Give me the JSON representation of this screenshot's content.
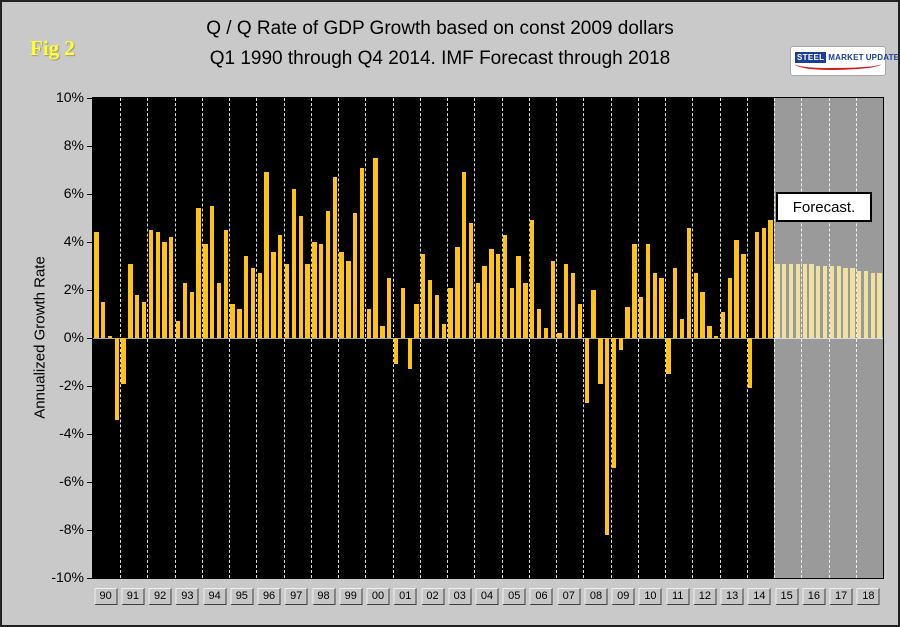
{
  "header": {
    "fig_label": "Fig 2",
    "title_line1": "Q / Q Rate of GDP Growth based on const 2009 dollars",
    "title_line2": "Q1 1990 through Q4 2014. IMF Forecast through 2018"
  },
  "logo": {
    "word1": "STEEL",
    "word2": "MARKET",
    "word3": "UPDATE"
  },
  "chart": {
    "y_axis_title": "Annualized Growth Rate",
    "forecast_label": "Forecast.",
    "colors": {
      "bar_historical": "#ffc412",
      "bar_forecast": "#efe1a0",
      "plot_bg": "#000000",
      "forecast_bg": "#9a9a9a",
      "page_bg": "#c9c9c9",
      "fig_label": "#ffff2e"
    }
  },
  "chart_data": {
    "type": "bar",
    "title": "Q / Q Rate of GDP Growth based on const 2009 dollars, Q1 1990 through Q4 2014. IMF Forecast through 2018",
    "xlabel": "",
    "ylabel": "Annualized Growth Rate",
    "ylim": [
      -10,
      10
    ],
    "y_tick_step": 2,
    "y_tick_labels": [
      "10%",
      "8%",
      "6%",
      "4%",
      "2%",
      "0%",
      "-2%",
      "-4%",
      "-6%",
      "-8%",
      "-10%"
    ],
    "grid": "vertical-dashed-per-year",
    "legend_position": "none",
    "quarters_per_year": 4,
    "years": [
      "90",
      "91",
      "92",
      "93",
      "94",
      "95",
      "96",
      "97",
      "98",
      "99",
      "00",
      "01",
      "02",
      "03",
      "04",
      "05",
      "06",
      "07",
      "08",
      "09",
      "10",
      "11",
      "12",
      "13",
      "14",
      "15",
      "16",
      "17",
      "18"
    ],
    "forecast_start_index": 100,
    "forecast_start_year": "15",
    "values": [
      4.4,
      1.5,
      0.1,
      -3.4,
      -1.9,
      3.1,
      1.8,
      1.5,
      4.5,
      4.4,
      4.0,
      4.2,
      0.7,
      2.3,
      1.9,
      5.4,
      3.9,
      5.5,
      2.3,
      4.5,
      1.4,
      1.2,
      3.4,
      2.9,
      2.7,
      6.9,
      3.6,
      4.3,
      3.1,
      6.2,
      5.1,
      3.1,
      4.0,
      3.9,
      5.3,
      6.7,
      3.6,
      3.2,
      5.2,
      7.1,
      1.2,
      7.5,
      0.5,
      2.5,
      -1.1,
      2.1,
      -1.3,
      1.4,
      3.5,
      2.4,
      1.8,
      0.6,
      2.1,
      3.8,
      6.9,
      4.8,
      2.3,
      3.0,
      3.7,
      3.5,
      4.3,
      2.1,
      3.4,
      2.3,
      4.9,
      1.2,
      0.4,
      3.2,
      0.2,
      3.1,
      2.7,
      1.4,
      -2.7,
      2.0,
      -1.9,
      -8.2,
      -5.4,
      -0.5,
      1.3,
      3.9,
      1.7,
      3.9,
      2.7,
      2.5,
      -1.5,
      2.9,
      0.8,
      4.6,
      2.7,
      1.9,
      0.5,
      0.1,
      1.1,
      2.5,
      4.1,
      3.5,
      -2.1,
      4.4,
      4.6,
      4.9,
      3.1,
      3.1,
      3.1,
      3.1,
      3.1,
      3.1,
      3.0,
      3.0,
      3.0,
      3.0,
      2.9,
      2.9,
      2.8,
      2.8,
      2.7,
      2.7
    ]
  }
}
